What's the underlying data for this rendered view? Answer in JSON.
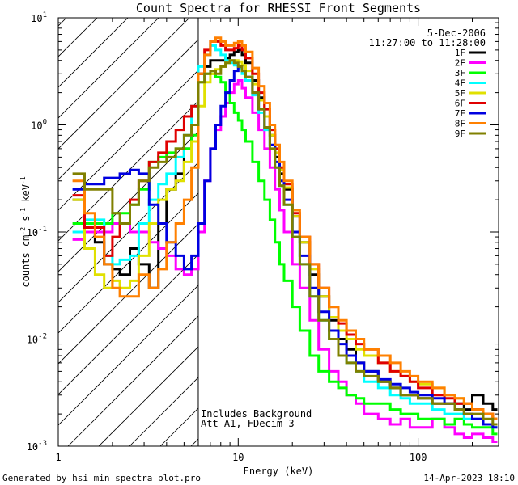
{
  "chart_data": {
    "type": "line",
    "title": "Count Spectra for RHESSI Front Segments",
    "xlabel": "Energy (keV)",
    "ylabel_parts": [
      "counts cm",
      "-2",
      " s",
      "-1",
      " keV",
      "-1"
    ],
    "xscale": "log",
    "yscale": "log",
    "xlim": [
      1,
      280
    ],
    "ylim": [
      0.001,
      10
    ],
    "x_ticks": [
      {
        "value": 1,
        "label": "1"
      },
      {
        "value": 10,
        "label": "10"
      },
      {
        "value": 100,
        "label": "100"
      }
    ],
    "y_ticks": [
      {
        "value": 0.001,
        "base": "10",
        "exp": "-3"
      },
      {
        "value": 0.01,
        "base": "10",
        "exp": "-2"
      },
      {
        "value": 0.1,
        "base": "10",
        "exp": "-1"
      },
      {
        "value": 1,
        "base": "10",
        "exp": "0"
      },
      {
        "value": 10,
        "base": "10",
        "exp": "1"
      }
    ],
    "date": "5-Dec-2006",
    "time_range": "11:27:00 to 11:28:00",
    "annotation_lines": [
      "Includes Background",
      "Att A1, FDecim 3"
    ],
    "shaded_region": {
      "x_max": 6.0
    },
    "footer_left": "Generated by hsi_min_spectra_plot.pro",
    "footer_right": "14-Apr-2023 18:10",
    "series": [
      {
        "name": "1F",
        "color": "#000000",
        "x": [
          1.2,
          1.4,
          1.6,
          1.8,
          2.0,
          2.2,
          2.5,
          2.8,
          3.2,
          3.6,
          4.0,
          4.5,
          5.0,
          5.5,
          6.0,
          6.5,
          7.0,
          7.5,
          8.0,
          8.5,
          9.0,
          9.5,
          10.0,
          10.5,
          11.0,
          12.0,
          13.0,
          14.0,
          15.0,
          16.0,
          17.0,
          18.0,
          20.0,
          22.0,
          25.0,
          28.0,
          32.0,
          36.0,
          40.0,
          45.0,
          50.0,
          60.0,
          70.0,
          80.0,
          90.0,
          100.0,
          120.0,
          140.0,
          160.0,
          180.0,
          200.0,
          230.0,
          260.0
        ],
        "y": [
          0.2,
          0.1,
          0.08,
          0.05,
          0.045,
          0.04,
          0.07,
          0.05,
          0.03,
          0.12,
          0.25,
          0.35,
          0.6,
          1.0,
          3.0,
          3.5,
          4.0,
          4.0,
          4.0,
          4.2,
          4.5,
          4.8,
          5.0,
          4.5,
          3.8,
          2.6,
          1.8,
          1.2,
          0.8,
          0.5,
          0.35,
          0.25,
          0.14,
          0.08,
          0.04,
          0.025,
          0.015,
          0.01,
          0.008,
          0.006,
          0.005,
          0.004,
          0.0035,
          0.003,
          0.003,
          0.0028,
          0.0025,
          0.0025,
          0.0025,
          0.0022,
          0.003,
          0.0025,
          0.0022
        ]
      },
      {
        "name": "2F",
        "color": "#ff00ff",
        "x": [
          1.2,
          1.4,
          1.6,
          1.8,
          2.0,
          2.2,
          2.5,
          2.8,
          3.2,
          3.6,
          4.0,
          4.5,
          5.0,
          5.5,
          6.0,
          6.5,
          7.0,
          7.5,
          8.0,
          8.5,
          9.0,
          9.5,
          10.0,
          10.5,
          11.0,
          12.0,
          13.0,
          14.0,
          15.0,
          16.0,
          17.0,
          18.0,
          20.0,
          22.0,
          25.0,
          28.0,
          32.0,
          36.0,
          40.0,
          45.0,
          50.0,
          60.0,
          70.0,
          80.0,
          90.0,
          100.0,
          120.0,
          140.0,
          160.0,
          180.0,
          200.0,
          230.0,
          260.0
        ],
        "y": [
          0.085,
          0.1,
          0.1,
          0.1,
          0.12,
          0.12,
          0.1,
          0.1,
          0.08,
          0.07,
          0.06,
          0.045,
          0.04,
          0.045,
          0.1,
          0.3,
          0.6,
          0.9,
          1.2,
          1.6,
          2.0,
          2.4,
          2.6,
          2.2,
          1.8,
          1.3,
          0.9,
          0.6,
          0.4,
          0.25,
          0.16,
          0.1,
          0.05,
          0.03,
          0.015,
          0.008,
          0.005,
          0.004,
          0.003,
          0.0025,
          0.002,
          0.0018,
          0.0016,
          0.0018,
          0.0015,
          0.0015,
          0.0018,
          0.0015,
          0.0013,
          0.0012,
          0.0013,
          0.0012,
          0.0011
        ]
      },
      {
        "name": "3F",
        "color": "#00ff00",
        "x": [
          1.2,
          1.4,
          1.6,
          1.8,
          2.0,
          2.2,
          2.5,
          2.8,
          3.2,
          3.6,
          4.0,
          4.5,
          5.0,
          5.5,
          6.0,
          6.5,
          7.0,
          7.5,
          8.0,
          8.5,
          9.0,
          9.5,
          10.0,
          10.5,
          11.0,
          12.0,
          13.0,
          14.0,
          15.0,
          16.0,
          17.0,
          18.0,
          20.0,
          22.0,
          25.0,
          28.0,
          32.0,
          36.0,
          40.0,
          45.0,
          50.0,
          60.0,
          70.0,
          80.0,
          90.0,
          100.0,
          120.0,
          140.0,
          160.0,
          180.0,
          200.0,
          230.0,
          260.0
        ],
        "y": [
          0.12,
          0.12,
          0.12,
          0.12,
          0.15,
          0.15,
          0.18,
          0.25,
          0.45,
          0.5,
          0.55,
          0.6,
          0.6,
          0.8,
          2.5,
          3.0,
          3.0,
          2.8,
          2.5,
          2.0,
          1.6,
          1.3,
          1.1,
          0.9,
          0.7,
          0.45,
          0.3,
          0.2,
          0.13,
          0.08,
          0.05,
          0.035,
          0.02,
          0.012,
          0.007,
          0.005,
          0.004,
          0.0035,
          0.003,
          0.0028,
          0.0025,
          0.0025,
          0.0022,
          0.002,
          0.002,
          0.0018,
          0.0018,
          0.0016,
          0.0018,
          0.0016,
          0.0015,
          0.0015,
          0.0013
        ]
      },
      {
        "name": "4F",
        "color": "#00ffff",
        "x": [
          1.2,
          1.4,
          1.6,
          1.8,
          2.0,
          2.2,
          2.5,
          2.8,
          3.2,
          3.6,
          4.0,
          4.5,
          5.0,
          5.5,
          6.0,
          6.5,
          7.0,
          7.5,
          8.0,
          8.5,
          9.0,
          9.5,
          10.0,
          10.5,
          11.0,
          12.0,
          13.0,
          14.0,
          15.0,
          16.0,
          17.0,
          18.0,
          20.0,
          22.0,
          25.0,
          28.0,
          32.0,
          36.0,
          40.0,
          45.0,
          50.0,
          60.0,
          70.0,
          80.0,
          90.0,
          100.0,
          120.0,
          140.0,
          160.0,
          180.0,
          200.0,
          230.0,
          260.0
        ],
        "y": [
          0.1,
          0.13,
          0.13,
          0.06,
          0.05,
          0.055,
          0.06,
          0.12,
          0.2,
          0.28,
          0.35,
          0.5,
          0.8,
          1.5,
          3.5,
          4.5,
          5.5,
          5.0,
          4.5,
          4.0,
          3.8,
          3.6,
          3.4,
          3.0,
          2.6,
          1.9,
          1.3,
          0.9,
          0.6,
          0.4,
          0.27,
          0.18,
          0.09,
          0.05,
          0.025,
          0.015,
          0.01,
          0.007,
          0.006,
          0.005,
          0.004,
          0.0035,
          0.003,
          0.0028,
          0.0025,
          0.0025,
          0.0022,
          0.002,
          0.002,
          0.0018,
          0.0018,
          0.0016,
          0.0015
        ]
      },
      {
        "name": "5F",
        "color": "#e0e000",
        "x": [
          1.2,
          1.4,
          1.6,
          1.8,
          2.0,
          2.2,
          2.5,
          2.8,
          3.2,
          3.6,
          4.0,
          4.5,
          5.0,
          5.5,
          6.0,
          6.5,
          7.0,
          7.5,
          8.0,
          8.5,
          9.0,
          9.5,
          10.0,
          10.5,
          11.0,
          12.0,
          13.0,
          14.0,
          15.0,
          16.0,
          17.0,
          18.0,
          20.0,
          22.0,
          25.0,
          28.0,
          32.0,
          36.0,
          40.0,
          45.0,
          50.0,
          60.0,
          70.0,
          80.0,
          90.0,
          100.0,
          120.0,
          140.0,
          160.0,
          180.0,
          200.0,
          230.0,
          260.0
        ],
        "y": [
          0.2,
          0.07,
          0.04,
          0.03,
          0.035,
          0.03,
          0.035,
          0.06,
          0.12,
          0.2,
          0.25,
          0.3,
          0.45,
          0.7,
          1.5,
          2.5,
          3.0,
          3.3,
          3.5,
          3.8,
          4.0,
          4.0,
          3.9,
          3.6,
          3.2,
          2.4,
          1.7,
          1.2,
          0.8,
          0.55,
          0.38,
          0.26,
          0.14,
          0.08,
          0.045,
          0.025,
          0.016,
          0.012,
          0.01,
          0.008,
          0.007,
          0.006,
          0.005,
          0.0045,
          0.004,
          0.0038,
          0.0035,
          0.003,
          0.0028,
          0.0025,
          0.0022,
          0.002,
          0.0018
        ]
      },
      {
        "name": "6F",
        "color": "#e00000",
        "x": [
          1.2,
          1.4,
          1.6,
          1.8,
          2.0,
          2.2,
          2.5,
          2.8,
          3.2,
          3.6,
          4.0,
          4.5,
          5.0,
          5.5,
          6.0,
          6.5,
          7.0,
          7.5,
          8.0,
          8.5,
          9.0,
          9.5,
          10.0,
          10.5,
          11.0,
          12.0,
          13.0,
          14.0,
          15.0,
          16.0,
          17.0,
          18.0,
          20.0,
          22.0,
          25.0,
          28.0,
          32.0,
          36.0,
          40.0,
          45.0,
          50.0,
          60.0,
          70.0,
          80.0,
          90.0,
          100.0,
          120.0,
          140.0,
          160.0,
          180.0,
          200.0,
          230.0,
          260.0
        ],
        "y": [
          0.22,
          0.11,
          0.11,
          0.06,
          0.09,
          0.12,
          0.2,
          0.3,
          0.45,
          0.55,
          0.7,
          0.9,
          1.2,
          1.5,
          3.0,
          5.0,
          6.0,
          6.0,
          5.5,
          5.0,
          5.0,
          5.2,
          5.5,
          5.0,
          4.2,
          3.0,
          2.0,
          1.4,
          0.9,
          0.6,
          0.4,
          0.28,
          0.15,
          0.09,
          0.05,
          0.03,
          0.02,
          0.014,
          0.011,
          0.009,
          0.008,
          0.006,
          0.005,
          0.0045,
          0.004,
          0.0035,
          0.003,
          0.0028,
          0.0025,
          0.0025,
          0.0022,
          0.002,
          0.0018
        ]
      },
      {
        "name": "7F",
        "color": "#0000e0",
        "x": [
          1.2,
          1.4,
          1.6,
          1.8,
          2.0,
          2.2,
          2.5,
          2.8,
          3.2,
          3.6,
          4.0,
          4.5,
          5.0,
          5.5,
          6.0,
          6.5,
          7.0,
          7.5,
          8.0,
          8.5,
          9.0,
          9.5,
          10.0,
          10.5,
          11.0,
          12.0,
          13.0,
          14.0,
          15.0,
          16.0,
          17.0,
          18.0,
          20.0,
          22.0,
          25.0,
          28.0,
          32.0,
          36.0,
          40.0,
          45.0,
          50.0,
          60.0,
          70.0,
          80.0,
          90.0,
          100.0,
          120.0,
          140.0,
          160.0,
          180.0,
          200.0,
          230.0,
          260.0
        ],
        "y": [
          0.25,
          0.28,
          0.28,
          0.32,
          0.32,
          0.35,
          0.38,
          0.35,
          0.18,
          0.12,
          0.08,
          0.06,
          0.045,
          0.06,
          0.12,
          0.3,
          0.6,
          1.0,
          1.5,
          2.0,
          2.6,
          3.2,
          3.5,
          3.2,
          2.8,
          2.0,
          1.4,
          0.95,
          0.65,
          0.45,
          0.3,
          0.2,
          0.1,
          0.06,
          0.03,
          0.018,
          0.012,
          0.009,
          0.007,
          0.006,
          0.005,
          0.0042,
          0.0038,
          0.0035,
          0.0032,
          0.003,
          0.0028,
          0.0025,
          0.0022,
          0.002,
          0.0018,
          0.0016,
          0.0015
        ]
      },
      {
        "name": "8F",
        "color": "#ff8000",
        "x": [
          1.2,
          1.4,
          1.6,
          1.8,
          2.0,
          2.2,
          2.5,
          2.8,
          3.2,
          3.6,
          4.0,
          4.5,
          5.0,
          5.5,
          6.0,
          6.5,
          7.0,
          7.5,
          8.0,
          8.5,
          9.0,
          9.5,
          10.0,
          10.5,
          11.0,
          12.0,
          13.0,
          14.0,
          15.0,
          16.0,
          17.0,
          18.0,
          20.0,
          22.0,
          25.0,
          28.0,
          32.0,
          36.0,
          40.0,
          45.0,
          50.0,
          60.0,
          70.0,
          80.0,
          90.0,
          100.0,
          120.0,
          140.0,
          160.0,
          180.0,
          200.0,
          230.0,
          260.0
        ],
        "y": [
          0.3,
          0.15,
          0.09,
          0.05,
          0.03,
          0.025,
          0.025,
          0.04,
          0.03,
          0.045,
          0.08,
          0.12,
          0.2,
          0.4,
          3.0,
          4.5,
          6.0,
          6.5,
          6.0,
          5.5,
          5.5,
          5.8,
          6.0,
          5.5,
          4.8,
          3.4,
          2.3,
          1.6,
          1.0,
          0.65,
          0.45,
          0.3,
          0.16,
          0.09,
          0.05,
          0.03,
          0.02,
          0.015,
          0.012,
          0.01,
          0.008,
          0.007,
          0.006,
          0.005,
          0.0045,
          0.004,
          0.0035,
          0.003,
          0.0028,
          0.0025,
          0.0022,
          0.002,
          0.0018
        ]
      },
      {
        "name": "9F",
        "color": "#808000",
        "x": [
          1.2,
          1.4,
          1.6,
          1.8,
          2.0,
          2.2,
          2.5,
          2.8,
          3.2,
          3.6,
          4.0,
          4.5,
          5.0,
          5.5,
          6.0,
          6.5,
          7.0,
          7.5,
          8.0,
          8.5,
          9.0,
          9.5,
          10.0,
          10.5,
          11.0,
          12.0,
          13.0,
          14.0,
          15.0,
          16.0,
          17.0,
          18.0,
          20.0,
          22.0,
          25.0,
          28.0,
          32.0,
          36.0,
          40.0,
          45.0,
          50.0,
          60.0,
          70.0,
          80.0,
          90.0,
          100.0,
          120.0,
          140.0,
          160.0,
          180.0,
          200.0,
          230.0,
          260.0
        ],
        "y": [
          0.35,
          0.25,
          0.25,
          0.25,
          0.15,
          0.12,
          0.18,
          0.3,
          0.4,
          0.45,
          0.5,
          0.6,
          0.8,
          1.0,
          2.5,
          3.0,
          3.2,
          3.0,
          3.5,
          3.8,
          4.0,
          3.8,
          3.5,
          3.2,
          2.8,
          2.0,
          1.4,
          0.95,
          0.6,
          0.4,
          0.27,
          0.18,
          0.09,
          0.05,
          0.025,
          0.015,
          0.01,
          0.007,
          0.006,
          0.005,
          0.0045,
          0.004,
          0.0035,
          0.003,
          0.003,
          0.0028,
          0.0025,
          0.0025,
          0.0022,
          0.002,
          0.002,
          0.0018,
          0.0016
        ]
      }
    ]
  }
}
